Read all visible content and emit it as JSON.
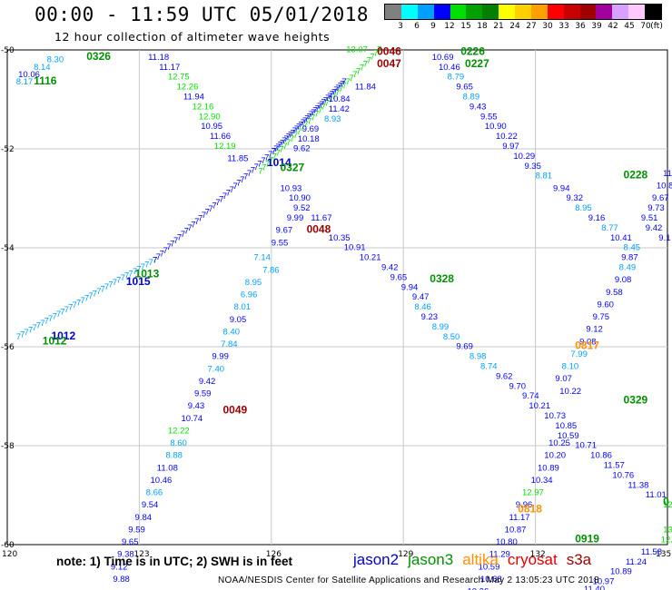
{
  "header": {
    "title": "00:00 - 11:59 UTC 05/01/2018",
    "subtitle": "12 hour collection of altimeter wave heights"
  },
  "color_scale": {
    "labels": [
      "3",
      "6",
      "9",
      "12",
      "15",
      "18",
      "21",
      "24",
      "27",
      "30",
      "33",
      "36",
      "39",
      "42",
      "45",
      "70",
      "(ft)"
    ],
    "colors": [
      "#808080",
      "#00ffff",
      "#00a0ff",
      "#0000ff",
      "#00e000",
      "#00a000",
      "#008000",
      "#ffff00",
      "#ffd000",
      "#ffa000",
      "#ff0000",
      "#c80000",
      "#a00000",
      "#a000a0",
      "#d8a0ff",
      "#ffc8ff",
      "#000000"
    ]
  },
  "axes": {
    "lon_ticks": [
      "120",
      "123",
      "126",
      "129",
      "132",
      "135"
    ],
    "lat_ticks": [
      "-50",
      "-52",
      "-54",
      "-56",
      "-58",
      "-60"
    ]
  },
  "note": "note: 1) Time is in UTC; 2) SWH is in feet",
  "legend": [
    {
      "name": "jason2",
      "color": "#0000cc"
    },
    {
      "name": "jason3",
      "color": "#009000"
    },
    {
      "name": "altika",
      "color": "#ff9000"
    },
    {
      "name": "cryosat",
      "color": "#dd0000"
    },
    {
      "name": "s3a",
      "color": "#990000"
    }
  ],
  "footer": "NOAA/NESDIS Center for Satellite Applications and Research     May  2 13:05:23 UTC 2018",
  "time_labels": [
    {
      "text": "0326",
      "color": "#009000",
      "lon": 121.8,
      "lat": -50.2
    },
    {
      "text": "1116",
      "color": "#009000",
      "lon": 120.6,
      "lat": -50.7
    },
    {
      "text": "0046",
      "color": "#990000",
      "lon": 128.4,
      "lat": -50.1
    },
    {
      "text": "0047",
      "color": "#990000",
      "lon": 128.4,
      "lat": -50.35
    },
    {
      "text": "0226",
      "color": "#009000",
      "lon": 130.3,
      "lat": -50.1
    },
    {
      "text": "0227",
      "color": "#009000",
      "lon": 130.4,
      "lat": -50.35
    },
    {
      "text": "1014",
      "color": "#0000cc",
      "lon": 125.9,
      "lat": -52.35
    },
    {
      "text": "0327",
      "color": "#009000",
      "lon": 126.2,
      "lat": -52.45
    },
    {
      "text": "0228",
      "color": "#009000",
      "lon": 134.0,
      "lat": -52.6
    },
    {
      "text": "0048",
      "color": "#990000",
      "lon": 126.8,
      "lat": -53.7
    },
    {
      "text": "1013",
      "color": "#009000",
      "lon": 122.9,
      "lat": -54.6
    },
    {
      "text": "1015",
      "color": "#0000cc",
      "lon": 122.7,
      "lat": -54.75
    },
    {
      "text": "0328",
      "color": "#009000",
      "lon": 129.6,
      "lat": -54.7
    },
    {
      "text": "1012",
      "color": "#0000cc",
      "lon": 121.0,
      "lat": -55.85
    },
    {
      "text": "1012",
      "color": "#009000",
      "lon": 120.8,
      "lat": -55.95
    },
    {
      "text": "0817",
      "color": "#ff9000",
      "lon": 132.9,
      "lat": -56.05
    },
    {
      "text": "0329",
      "color": "#009000",
      "lon": 134.0,
      "lat": -57.15
    },
    {
      "text": "0049",
      "color": "#990000",
      "lon": 124.9,
      "lat": -57.35
    },
    {
      "text": "0818",
      "color": "#ff9000",
      "lon": 131.6,
      "lat": -59.35
    },
    {
      "text": "0919",
      "color": "#009000",
      "lon": 132.9,
      "lat": -59.95
    },
    {
      "text": "0",
      "color": "#009000",
      "lon": 134.9,
      "lat": -59.2
    }
  ],
  "swh_values": [
    {
      "text": "8.30",
      "color": "#00a0ff",
      "lon": 120.9,
      "lat": -50.25
    },
    {
      "text": "8.14",
      "color": "#00a0ff",
      "lon": 120.6,
      "lat": -50.4
    },
    {
      "text": "10.06",
      "color": "#0000ff",
      "lon": 120.25,
      "lat": -50.55
    },
    {
      "text": "8.17",
      "color": "#00a0ff",
      "lon": 120.2,
      "lat": -50.7
    },
    {
      "text": "11.18",
      "color": "#0000ff",
      "lon": 123.2,
      "lat": -50.2
    },
    {
      "text": "11.17",
      "color": "#0000ff",
      "lon": 123.45,
      "lat": -50.4
    },
    {
      "text": "12.75",
      "color": "#00e000",
      "lon": 123.65,
      "lat": -50.6
    },
    {
      "text": "12.26",
      "color": "#00e000",
      "lon": 123.85,
      "lat": -50.8
    },
    {
      "text": "11.94",
      "color": "#0000ff",
      "lon": 124.0,
      "lat": -51.0
    },
    {
      "text": "12.16",
      "color": "#00e000",
      "lon": 124.2,
      "lat": -51.2
    },
    {
      "text": "12.90",
      "color": "#00e000",
      "lon": 124.35,
      "lat": -51.4
    },
    {
      "text": "10.95",
      "color": "#0000ff",
      "lon": 124.4,
      "lat": -51.6
    },
    {
      "text": "11.66",
      "color": "#0000ff",
      "lon": 124.6,
      "lat": -51.8
    },
    {
      "text": "12.19",
      "color": "#00e000",
      "lon": 124.7,
      "lat": -52.0
    },
    {
      "text": "11.85",
      "color": "#0000ff",
      "lon": 125.0,
      "lat": -52.25
    },
    {
      "text": "13.07",
      "color": "#00e000",
      "lon": 127.7,
      "lat": -50.05
    },
    {
      "text": "11.84",
      "color": "#0000ff",
      "lon": 127.9,
      "lat": -50.8
    },
    {
      "text": "10.84",
      "color": "#0000ff",
      "lon": 127.3,
      "lat": -51.05
    },
    {
      "text": "11.42",
      "color": "#0000ff",
      "lon": 127.3,
      "lat": -51.25
    },
    {
      "text": "8.93",
      "color": "#00a0ff",
      "lon": 127.2,
      "lat": -51.45
    },
    {
      "text": "9.69",
      "color": "#0000ff",
      "lon": 126.7,
      "lat": -51.65
    },
    {
      "text": "10.18",
      "color": "#0000ff",
      "lon": 126.6,
      "lat": -51.85
    },
    {
      "text": "9.62",
      "color": "#0000ff",
      "lon": 126.5,
      "lat": -52.05
    },
    {
      "text": "10.69",
      "color": "#0000ff",
      "lon": 129.65,
      "lat": -50.2
    },
    {
      "text": "10.46",
      "color": "#0000ff",
      "lon": 129.8,
      "lat": -50.4
    },
    {
      "text": "8.79",
      "color": "#00a0ff",
      "lon": 130.0,
      "lat": -50.6
    },
    {
      "text": "9.65",
      "color": "#0000ff",
      "lon": 130.2,
      "lat": -50.8
    },
    {
      "text": "8.89",
      "color": "#00a0ff",
      "lon": 130.35,
      "lat": -51.0
    },
    {
      "text": "9.43",
      "color": "#0000ff",
      "lon": 130.5,
      "lat": -51.2
    },
    {
      "text": "9.55",
      "color": "#0000ff",
      "lon": 130.75,
      "lat": -51.4
    },
    {
      "text": "10.90",
      "color": "#0000ff",
      "lon": 130.85,
      "lat": -51.6
    },
    {
      "text": "10.22",
      "color": "#0000ff",
      "lon": 131.1,
      "lat": -51.8
    },
    {
      "text": "9.97",
      "color": "#0000ff",
      "lon": 131.25,
      "lat": -52.0
    },
    {
      "text": "10.29",
      "color": "#0000ff",
      "lon": 131.5,
      "lat": -52.2
    },
    {
      "text": "9.35",
      "color": "#0000ff",
      "lon": 131.75,
      "lat": -52.4
    },
    {
      "text": "8.81",
      "color": "#00a0ff",
      "lon": 132.0,
      "lat": -52.6
    },
    {
      "text": "9.94",
      "color": "#0000ff",
      "lon": 132.4,
      "lat": -52.85
    },
    {
      "text": "9.32",
      "color": "#0000ff",
      "lon": 132.7,
      "lat": -53.05
    },
    {
      "text": "8.95",
      "color": "#00a0ff",
      "lon": 132.9,
      "lat": -53.25
    },
    {
      "text": "9.16",
      "color": "#0000ff",
      "lon": 133.2,
      "lat": -53.45
    },
    {
      "text": "8.77",
      "color": "#00a0ff",
      "lon": 133.5,
      "lat": -53.65
    },
    {
      "text": "10.41",
      "color": "#0000ff",
      "lon": 133.7,
      "lat": -53.85
    },
    {
      "text": "8.45",
      "color": "#00a0ff",
      "lon": 134.0,
      "lat": -54.05
    },
    {
      "text": "9.87",
      "color": "#0000ff",
      "lon": 133.95,
      "lat": -54.25
    },
    {
      "text": "8.49",
      "color": "#00a0ff",
      "lon": 133.9,
      "lat": -54.45
    },
    {
      "text": "9.08",
      "color": "#0000ff",
      "lon": 133.8,
      "lat": -54.7
    },
    {
      "text": "9.58",
      "color": "#0000ff",
      "lon": 133.6,
      "lat": -54.95
    },
    {
      "text": "9.60",
      "color": "#0000ff",
      "lon": 133.4,
      "lat": -55.2
    },
    {
      "text": "9.75",
      "color": "#0000ff",
      "lon": 133.3,
      "lat": -55.45
    },
    {
      "text": "9.12",
      "color": "#0000ff",
      "lon": 133.15,
      "lat": -55.7
    },
    {
      "text": "9.08",
      "color": "#0000ff",
      "lon": 133.0,
      "lat": -55.95
    },
    {
      "text": "7.99",
      "color": "#00a0ff",
      "lon": 132.8,
      "lat": -56.2
    },
    {
      "text": "8.10",
      "color": "#00a0ff",
      "lon": 132.6,
      "lat": -56.45
    },
    {
      "text": "9.07",
      "color": "#0000ff",
      "lon": 132.45,
      "lat": -56.7
    },
    {
      "text": "10.22",
      "color": "#0000ff",
      "lon": 132.55,
      "lat": -56.95
    },
    {
      "text": "11.1",
      "color": "#0000ff",
      "lon": 134.9,
      "lat": -52.55
    },
    {
      "text": "10.8",
      "color": "#0000ff",
      "lon": 134.75,
      "lat": -52.8
    },
    {
      "text": "9.67",
      "color": "#0000ff",
      "lon": 134.65,
      "lat": -53.05
    },
    {
      "text": "9.73",
      "color": "#0000ff",
      "lon": 134.55,
      "lat": -53.25
    },
    {
      "text": "9.51",
      "color": "#0000ff",
      "lon": 134.4,
      "lat": -53.45
    },
    {
      "text": "9.42",
      "color": "#0000ff",
      "lon": 134.5,
      "lat": -53.65
    },
    {
      "text": "9.1",
      "color": "#0000ff",
      "lon": 134.8,
      "lat": -53.85
    },
    {
      "text": "10.93",
      "color": "#0000ff",
      "lon": 126.2,
      "lat": -52.85
    },
    {
      "text": "10.90",
      "color": "#0000ff",
      "lon": 126.4,
      "lat": -53.05
    },
    {
      "text": "9.52",
      "color": "#0000ff",
      "lon": 126.5,
      "lat": -53.25
    },
    {
      "text": "9.99",
      "color": "#0000ff",
      "lon": 126.35,
      "lat": -53.45
    },
    {
      "text": "11.67",
      "color": "#0000ff",
      "lon": 126.9,
      "lat": -53.45
    },
    {
      "text": "9.67",
      "color": "#0000ff",
      "lon": 126.1,
      "lat": -53.7
    },
    {
      "text": "9.55",
      "color": "#0000ff",
      "lon": 126.0,
      "lat": -53.95
    },
    {
      "text": "10.35",
      "color": "#0000ff",
      "lon": 127.3,
      "lat": -53.85
    },
    {
      "text": "10.91",
      "color": "#0000ff",
      "lon": 127.65,
      "lat": -54.05
    },
    {
      "text": "10.21",
      "color": "#0000ff",
      "lon": 128.0,
      "lat": -54.25
    },
    {
      "text": "9.42",
      "color": "#0000ff",
      "lon": 128.5,
      "lat": -54.45
    },
    {
      "text": "9.65",
      "color": "#0000ff",
      "lon": 128.7,
      "lat": -54.65
    },
    {
      "text": "9.94",
      "color": "#0000ff",
      "lon": 128.95,
      "lat": -54.85
    },
    {
      "text": "9.47",
      "color": "#0000ff",
      "lon": 129.2,
      "lat": -55.05
    },
    {
      "text": "8.46",
      "color": "#00a0ff",
      "lon": 129.25,
      "lat": -55.25
    },
    {
      "text": "9.23",
      "color": "#0000ff",
      "lon": 129.4,
      "lat": -55.45
    },
    {
      "text": "8.99",
      "color": "#00a0ff",
      "lon": 129.65,
      "lat": -55.65
    },
    {
      "text": "8.50",
      "color": "#00a0ff",
      "lon": 129.9,
      "lat": -55.85
    },
    {
      "text": "9.69",
      "color": "#0000ff",
      "lon": 130.2,
      "lat": -56.05
    },
    {
      "text": "8.98",
      "color": "#00a0ff",
      "lon": 130.5,
      "lat": -56.25
    },
    {
      "text": "8.74",
      "color": "#00a0ff",
      "lon": 130.75,
      "lat": -56.45
    },
    {
      "text": "9.62",
      "color": "#0000ff",
      "lon": 131.1,
      "lat": -56.65
    },
    {
      "text": "9.70",
      "color": "#0000ff",
      "lon": 131.4,
      "lat": -56.85
    },
    {
      "text": "9.74",
      "color": "#0000ff",
      "lon": 131.7,
      "lat": -57.05
    },
    {
      "text": "10.21",
      "color": "#0000ff",
      "lon": 131.85,
      "lat": -57.25
    },
    {
      "text": "10.73",
      "color": "#0000ff",
      "lon": 132.2,
      "lat": -57.45
    },
    {
      "text": "10.85",
      "color": "#0000ff",
      "lon": 132.45,
      "lat": -57.65
    },
    {
      "text": "10.59",
      "color": "#0000ff",
      "lon": 132.5,
      "lat": -57.85
    },
    {
      "text": "10.71",
      "color": "#0000ff",
      "lon": 132.9,
      "lat": -58.05
    },
    {
      "text": "10.86",
      "color": "#0000ff",
      "lon": 133.25,
      "lat": -58.25
    },
    {
      "text": "11.57",
      "color": "#0000ff",
      "lon": 133.55,
      "lat": -58.45
    },
    {
      "text": "10.76",
      "color": "#0000ff",
      "lon": 133.75,
      "lat": -58.65
    },
    {
      "text": "11.38",
      "color": "#0000ff",
      "lon": 134.1,
      "lat": -58.85
    },
    {
      "text": "11.01",
      "color": "#0000ff",
      "lon": 134.5,
      "lat": -59.05
    },
    {
      "text": "12.1",
      "color": "#00e000",
      "lon": 134.9,
      "lat": -59.25
    },
    {
      "text": "10.25",
      "color": "#0000ff",
      "lon": 132.3,
      "lat": -58.0
    },
    {
      "text": "10.20",
      "color": "#0000ff",
      "lon": 132.2,
      "lat": -58.25
    },
    {
      "text": "10.89",
      "color": "#0000ff",
      "lon": 132.05,
      "lat": -58.5
    },
    {
      "text": "10.34",
      "color": "#0000ff",
      "lon": 131.9,
      "lat": -58.75
    },
    {
      "text": "12.97",
      "color": "#00e000",
      "lon": 131.7,
      "lat": -59.0
    },
    {
      "text": "9.96",
      "color": "#0000ff",
      "lon": 131.55,
      "lat": -59.25
    },
    {
      "text": "11.17",
      "color": "#0000ff",
      "lon": 131.4,
      "lat": -59.5
    },
    {
      "text": "10.87",
      "color": "#0000ff",
      "lon": 131.3,
      "lat": -59.75
    },
    {
      "text": "10.80",
      "color": "#0000ff",
      "lon": 131.1,
      "lat": -60.0
    },
    {
      "text": "11.29",
      "color": "#0000ff",
      "lon": 130.95,
      "lat": -60.25
    },
    {
      "text": "10.59",
      "color": "#0000ff",
      "lon": 130.7,
      "lat": -60.5
    },
    {
      "text": "10.68",
      "color": "#0000ff",
      "lon": 130.75,
      "lat": -60.75
    },
    {
      "text": "10.26",
      "color": "#0000ff",
      "lon": 130.45,
      "lat": -61.0
    },
    {
      "text": "10.67",
      "color": "#0000ff",
      "lon": 132.4,
      "lat": -61.35
    },
    {
      "text": "10.97",
      "color": "#0000ff",
      "lon": 132.75,
      "lat": -61.15
    },
    {
      "text": "11.40",
      "color": "#0000ff",
      "lon": 133.1,
      "lat": -60.95
    },
    {
      "text": "10.97",
      "color": "#0000ff",
      "lon": 133.3,
      "lat": -60.8
    },
    {
      "text": "10.89",
      "color": "#0000ff",
      "lon": 133.7,
      "lat": -60.6
    },
    {
      "text": "11.24",
      "color": "#0000ff",
      "lon": 134.05,
      "lat": -60.4
    },
    {
      "text": "11.58",
      "color": "#0000ff",
      "lon": 134.4,
      "lat": -60.2
    },
    {
      "text": "12.57",
      "color": "#00e000",
      "lon": 134.85,
      "lat": -59.95
    },
    {
      "text": "13",
      "color": "#00e000",
      "lon": 134.9,
      "lat": -59.75
    },
    {
      "text": "7.86",
      "color": "#00a0ff",
      "lon": 125.8,
      "lat": -54.5
    },
    {
      "text": "7.14",
      "color": "#00a0ff",
      "lon": 125.6,
      "lat": -54.25
    },
    {
      "text": "8.95",
      "color": "#00a0ff",
      "lon": 125.4,
      "lat": -54.75
    },
    {
      "text": "6.96",
      "color": "#00a0ff",
      "lon": 125.3,
      "lat": -55.0
    },
    {
      "text": "8.01",
      "color": "#00a0ff",
      "lon": 125.15,
      "lat": -55.25
    },
    {
      "text": "9.05",
      "color": "#0000ff",
      "lon": 125.05,
      "lat": -55.5
    },
    {
      "text": "8.40",
      "color": "#00a0ff",
      "lon": 124.9,
      "lat": -55.75
    },
    {
      "text": "7.84",
      "color": "#00a0ff",
      "lon": 124.85,
      "lat": -56.0
    },
    {
      "text": "9.99",
      "color": "#0000ff",
      "lon": 124.65,
      "lat": -56.25
    },
    {
      "text": "7.40",
      "color": "#00a0ff",
      "lon": 124.55,
      "lat": -56.5
    },
    {
      "text": "9.42",
      "color": "#0000ff",
      "lon": 124.35,
      "lat": -56.75
    },
    {
      "text": "9.59",
      "color": "#0000ff",
      "lon": 124.25,
      "lat": -57.0
    },
    {
      "text": "9.43",
      "color": "#0000ff",
      "lon": 124.1,
      "lat": -57.25
    },
    {
      "text": "10.74",
      "color": "#0000ff",
      "lon": 123.95,
      "lat": -57.5
    },
    {
      "text": "12.22",
      "color": "#00e000",
      "lon": 123.65,
      "lat": -57.75
    },
    {
      "text": "8.60",
      "color": "#00a0ff",
      "lon": 123.7,
      "lat": -58.0
    },
    {
      "text": "8.88",
      "color": "#00a0ff",
      "lon": 123.6,
      "lat": -58.25
    },
    {
      "text": "11.08",
      "color": "#0000ff",
      "lon": 123.4,
      "lat": -58.5
    },
    {
      "text": "10.46",
      "color": "#0000ff",
      "lon": 123.25,
      "lat": -58.75
    },
    {
      "text": "8.66",
      "color": "#00a0ff",
      "lon": 123.15,
      "lat": -59.0
    },
    {
      "text": "9.54",
      "color": "#0000ff",
      "lon": 123.05,
      "lat": -59.25
    },
    {
      "text": "9.84",
      "color": "#0000ff",
      "lon": 122.9,
      "lat": -59.5
    },
    {
      "text": "9.59",
      "color": "#0000ff",
      "lon": 122.75,
      "lat": -59.75
    },
    {
      "text": "9.65",
      "color": "#0000ff",
      "lon": 122.6,
      "lat": -60.0
    },
    {
      "text": "9.38",
      "color": "#0000ff",
      "lon": 122.5,
      "lat": -60.25
    },
    {
      "text": "9.12",
      "color": "#0000ff",
      "lon": 122.35,
      "lat": -60.5
    },
    {
      "text": "9.88",
      "color": "#0000ff",
      "lon": 122.4,
      "lat": -60.75
    }
  ],
  "diag_tracks": [
    {
      "color": "#00a0ff",
      "from": [
        120.2,
        -55.85
      ],
      "to": [
        123.3,
        -54.3
      ]
    },
    {
      "color": "#0000ff",
      "from": [
        123.3,
        -54.3
      ],
      "to": [
        126.0,
        -52.1
      ]
    },
    {
      "color": "#00e000",
      "from": [
        125.7,
        -52.5
      ],
      "to": [
        128.4,
        -50.05
      ]
    },
    {
      "color": "#0000ff",
      "from": [
        126.0,
        -52.1
      ],
      "to": [
        127.6,
        -50.7
      ]
    }
  ]
}
